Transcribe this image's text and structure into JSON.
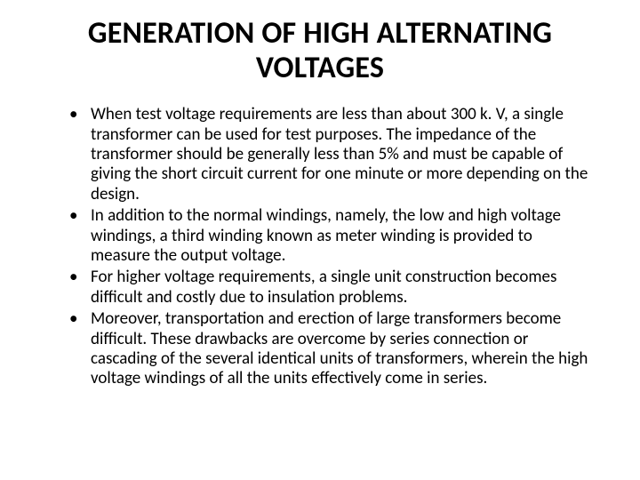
{
  "title": "GENERATION OF HIGH ALTERNATING VOLTAGES",
  "bullets": [
    "When test voltage requirements are less than about 300 k. V, a single transformer can be used for test purposes. The impedance of the transformer should be generally less than 5% and must be capable of giving the short circuit current for one minute or more depending on the design.",
    "In addition to the normal windings, namely, the low and high voltage windings, a third winding known as meter winding is provided to measure the output voltage.",
    " For higher voltage requirements, a single unit construction becomes difficult and costly due to insulation problems.",
    "Moreover, transportation and erection of large transformers become difficult. These drawbacks are overcome by series connection or cascading of the several identical units of transformers, wherein the high voltage windings of all the units effectively come in series."
  ]
}
